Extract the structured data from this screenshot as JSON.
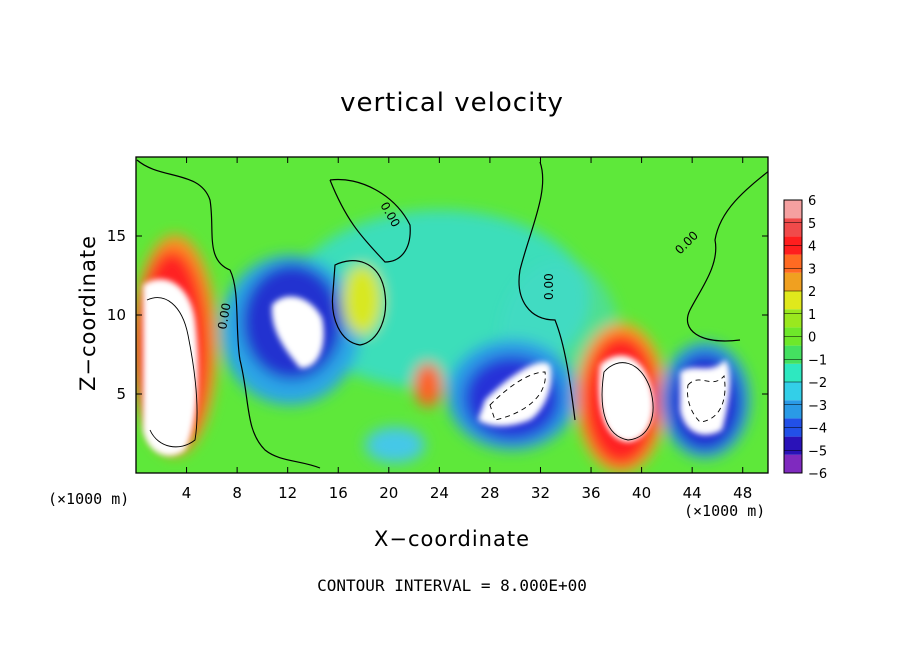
{
  "chart_data": {
    "type": "heatmap",
    "title": "vertical velocity",
    "xlabel": "X−coordinate",
    "ylabel": "Z−coordinate",
    "x_unit": "(×1000 m)",
    "xlim": [
      0,
      50
    ],
    "ylim": [
      0,
      20
    ],
    "x_ticks": [
      4,
      8,
      12,
      16,
      20,
      24,
      28,
      32,
      36,
      40,
      44,
      48
    ],
    "y_ticks": [
      5,
      10,
      15
    ],
    "colorbar_ticks": [
      6,
      5,
      4,
      3,
      2,
      1,
      0,
      -1,
      -2,
      -3,
      -4,
      -5,
      -6
    ],
    "colorbar_range": [
      -6,
      6
    ],
    "contour_label": "0.00",
    "contour_interval_text": "CONTOUR INTERVAL = 8.000E+00",
    "features": [
      {
        "x": 3.0,
        "z": 7.5,
        "w": 8.0,
        "note": "strong updraft column"
      },
      {
        "x": 12.5,
        "z": 9.5,
        "w": -8.0,
        "note": "strong downdraft"
      },
      {
        "x": 18.0,
        "z": 10.5,
        "w": 2.0
      },
      {
        "x": 23.0,
        "z": 5.0,
        "w": 4.5
      },
      {
        "x": 30.0,
        "z": 4.5,
        "w": -8.0
      },
      {
        "x": 38.5,
        "z": 5.5,
        "w": 8.0
      },
      {
        "x": 45.0,
        "z": 4.5,
        "w": -8.0
      }
    ]
  },
  "colors": {
    "levels": [
      "#7f2abf",
      "#2a12b8",
      "#2250e8",
      "#2a9ae6",
      "#33cfe8",
      "#2ee8c0",
      "#44e060",
      "#6ee82a",
      "#9ae81e",
      "#e0e81c",
      "#f0a020",
      "#ff6a22",
      "#ff1e1e",
      "#f04a4a",
      "#f5a0a0"
    ]
  }
}
